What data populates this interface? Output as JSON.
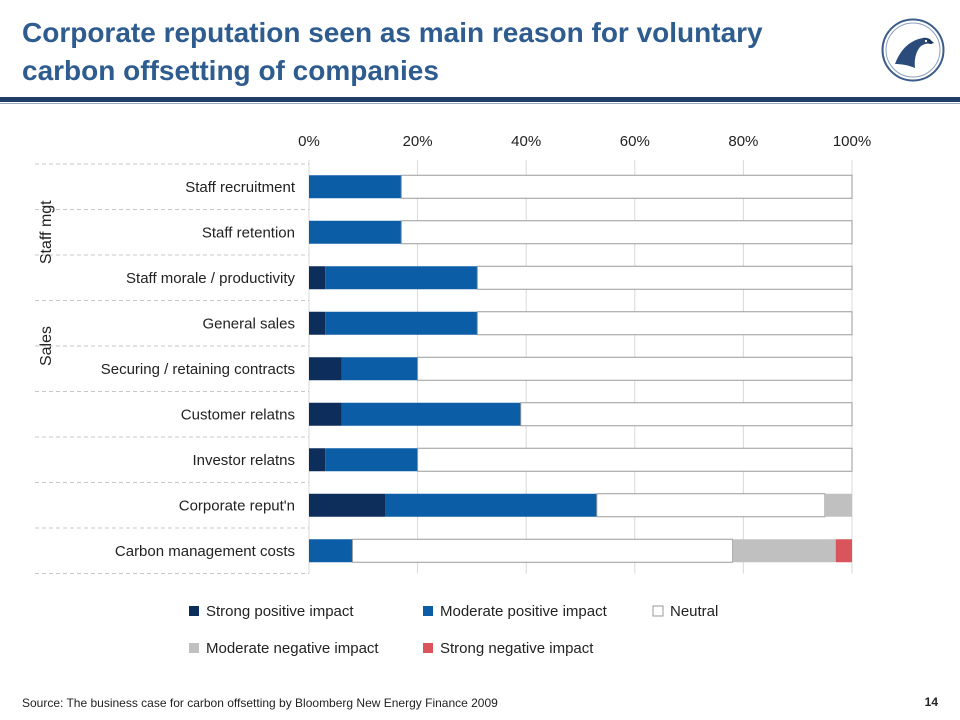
{
  "slide": {
    "title_line1": "Corporate reputation seen as main reason for voluntary",
    "title_line2": "carbon offsetting of companies",
    "source": "Source: The  business case for carbon offsetting by Bloomberg New Energy Finance 2009",
    "page_number": "14"
  },
  "colors": {
    "title": "#2e5c8f",
    "rule": "#1f3e6a",
    "strong_positive": "#0d2d5a",
    "moderate_positive": "#0b5da6",
    "neutral": "#ffffff",
    "moderate_negative": "#c0c0c0",
    "strong_negative": "#d9555b"
  },
  "chart_data": {
    "type": "bar",
    "orientation": "horizontal",
    "stacked": true,
    "categories": [
      "Staff recruitment",
      "Staff retention",
      "Staff morale / productivity",
      "General sales",
      "Securing / retaining contracts",
      "Customer relatns",
      "Investor relatns",
      "Corporate reput'n",
      "Carbon management costs"
    ],
    "groups": [
      {
        "label": "Staff mgt",
        "categories": [
          "Staff recruitment",
          "Staff retention",
          "Staff morale / productivity"
        ]
      },
      {
        "label": "Sales",
        "categories": [
          "General sales",
          "Securing / retaining contracts"
        ]
      }
    ],
    "series": [
      {
        "name": "Strong positive impact",
        "color": "#0d2d5a",
        "values": [
          0,
          0,
          3,
          3,
          6,
          6,
          3,
          14,
          0
        ]
      },
      {
        "name": "Moderate positive impact",
        "color": "#0b5da6",
        "values": [
          17,
          17,
          28,
          28,
          14,
          33,
          17,
          39,
          8
        ]
      },
      {
        "name": "Neutral",
        "color": "#ffffff",
        "values": [
          83,
          83,
          69,
          69,
          80,
          61,
          80,
          42,
          70
        ]
      },
      {
        "name": "Moderate negative impact",
        "color": "#c0c0c0",
        "values": [
          0,
          0,
          0,
          0,
          0,
          0,
          0,
          5,
          19
        ]
      },
      {
        "name": "Strong negative impact",
        "color": "#d9555b",
        "values": [
          0,
          0,
          0,
          0,
          0,
          0,
          0,
          0,
          3
        ]
      }
    ],
    "x_ticks": [
      "0%",
      "20%",
      "40%",
      "60%",
      "80%",
      "100%"
    ],
    "xlim": [
      0,
      100
    ],
    "x_axis_position": "top",
    "grid": "vertical",
    "legend_position": "bottom"
  }
}
